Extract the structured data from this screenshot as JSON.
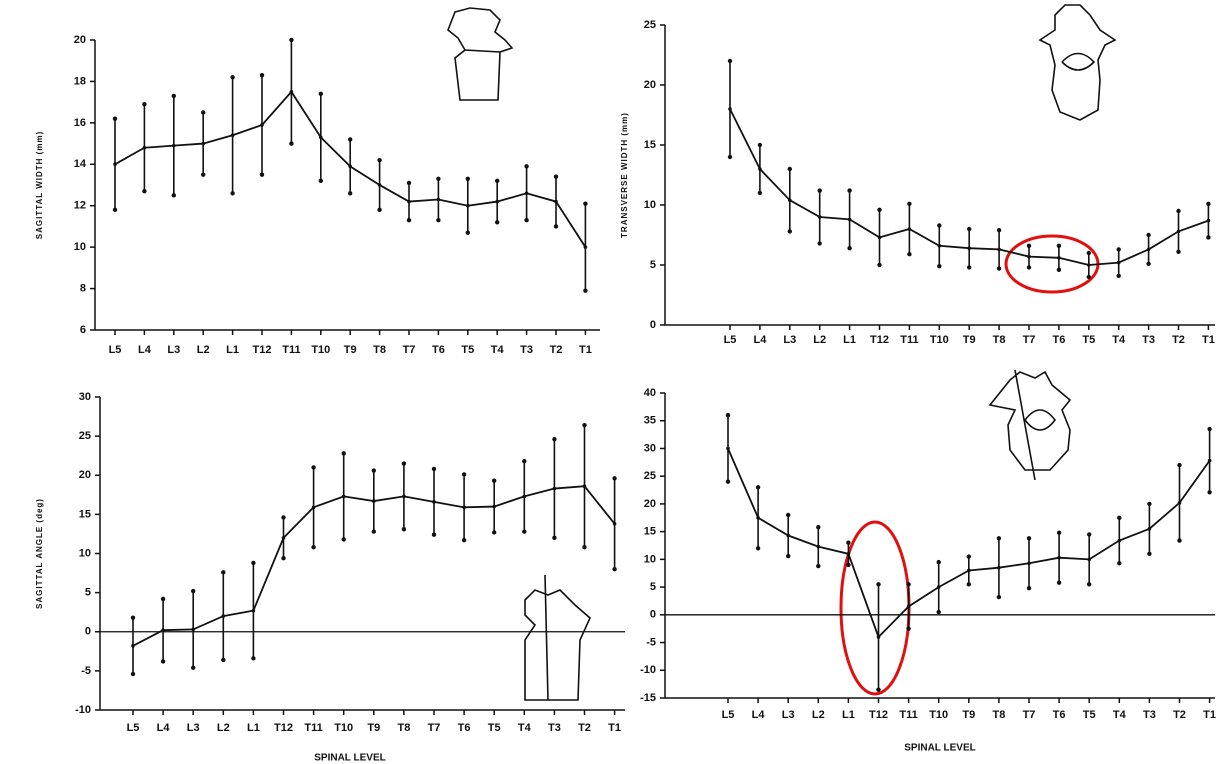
{
  "chart_data": [
    {
      "type": "line",
      "y_label": "SAGITTAL WIDTH (mm)",
      "categories": [
        "L5",
        "L4",
        "L3",
        "L2",
        "L1",
        "T12",
        "T11",
        "T10",
        "T9",
        "T8",
        "T7",
        "T6",
        "T5",
        "T4",
        "T3",
        "T2",
        "T1"
      ],
      "values": [
        14.0,
        14.8,
        14.9,
        15.0,
        15.4,
        15.9,
        17.5,
        15.3,
        13.9,
        13.0,
        12.2,
        12.3,
        12.0,
        12.2,
        12.6,
        12.2,
        10.0
      ],
      "errors": [
        2.2,
        2.1,
        2.4,
        1.5,
        2.8,
        2.4,
        2.5,
        2.1,
        1.3,
        1.2,
        0.9,
        1.0,
        1.3,
        1.0,
        1.3,
        1.2,
        2.1
      ],
      "color": "#111111",
      "ylim": [
        6,
        20
      ],
      "yticks": [
        6,
        8,
        10,
        12,
        14,
        16,
        18,
        20
      ]
    },
    {
      "type": "line",
      "y_label": "TRANSVERSE WIDTH (mm)",
      "categories": [
        "L5",
        "L4",
        "L3",
        "L2",
        "L1",
        "T12",
        "T11",
        "T10",
        "T9",
        "T8",
        "T7",
        "T6",
        "T5",
        "T4",
        "T3",
        "T2",
        "T1"
      ],
      "values": [
        18.0,
        13.0,
        10.4,
        9.0,
        8.8,
        7.3,
        8.0,
        6.6,
        6.4,
        6.3,
        5.7,
        5.6,
        5.0,
        5.2,
        6.3,
        7.8,
        8.7
      ],
      "errors": [
        4.0,
        2.0,
        2.6,
        2.2,
        2.4,
        2.3,
        2.1,
        1.7,
        1.6,
        1.6,
        0.9,
        1.0,
        1.0,
        1.1,
        1.2,
        1.7,
        1.4
      ],
      "color": "#111111",
      "ylim": [
        0,
        25
      ],
      "yticks": [
        0,
        5,
        10,
        15,
        20,
        25
      ]
    },
    {
      "type": "line",
      "y_label": "SAGITTAL ANGLE (deg)",
      "x_label": "SPINAL LEVEL",
      "categories": [
        "L5",
        "L4",
        "L3",
        "L2",
        "L1",
        "T12",
        "T11",
        "T10",
        "T9",
        "T8",
        "T7",
        "T6",
        "T5",
        "T4",
        "T3",
        "T2",
        "T1"
      ],
      "values": [
        -1.8,
        0.2,
        0.3,
        2.0,
        2.7,
        12.0,
        15.9,
        17.3,
        16.7,
        17.3,
        16.6,
        15.9,
        16.0,
        17.3,
        18.3,
        18.6,
        13.8
      ],
      "errors": [
        3.6,
        4.0,
        4.9,
        5.6,
        6.1,
        2.6,
        5.1,
        5.5,
        3.9,
        4.2,
        4.2,
        4.2,
        3.3,
        4.5,
        6.3,
        7.8,
        5.8
      ],
      "color": "#111111",
      "ylim": [
        -10,
        30
      ],
      "yticks": [
        -10,
        -5,
        0,
        5,
        10,
        15,
        20,
        25,
        30
      ],
      "reference_line": 0
    },
    {
      "type": "line",
      "x_label": "SPINAL LEVEL",
      "categories": [
        "L5",
        "L4",
        "L3",
        "L2",
        "L1",
        "T12",
        "T11",
        "T10",
        "T9",
        "T8",
        "T7",
        "T6",
        "T5",
        "T4",
        "T3",
        "T2",
        "T1"
      ],
      "values": [
        30.0,
        17.5,
        14.3,
        12.3,
        11.0,
        -4.0,
        1.5,
        5.0,
        8.0,
        8.5,
        9.3,
        10.3,
        10.0,
        13.4,
        15.5,
        20.2,
        27.8
      ],
      "errors": [
        6.0,
        5.5,
        3.7,
        3.5,
        2.0,
        9.5,
        4.0,
        4.5,
        2.5,
        5.3,
        4.5,
        4.5,
        4.5,
        4.1,
        4.5,
        6.8,
        5.7
      ],
      "color": "#111111",
      "ylim": [
        -15,
        40
      ],
      "yticks": [
        -15,
        -10,
        -5,
        0,
        5,
        10,
        15,
        20,
        25,
        30,
        35,
        40
      ],
      "reference_line": 0
    }
  ]
}
